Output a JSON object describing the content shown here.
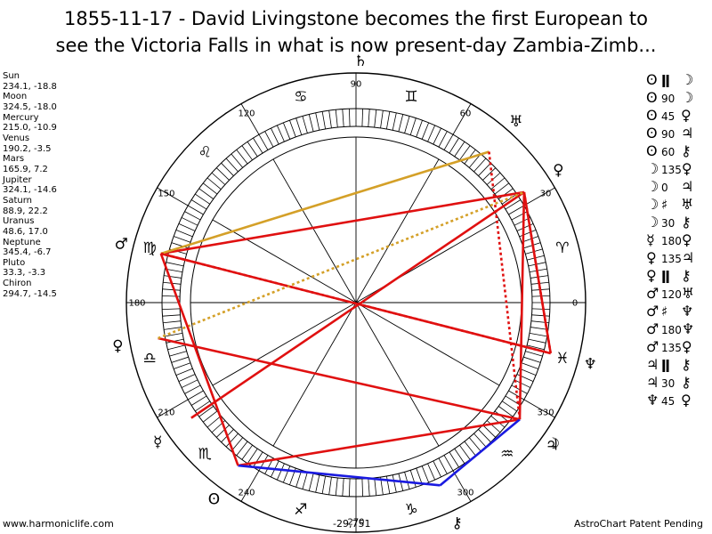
{
  "title_line1": "1855-11-17 - David Livingstone becomes the first European to",
  "title_line2": "see the Victoria Falls in what is now present-day Zambia-Zimb...",
  "positions": [
    {
      "name": "Sun",
      "value": "234.1, -18.8"
    },
    {
      "name": "Moon",
      "value": "324.5, -18.0"
    },
    {
      "name": "Mercury",
      "value": "215.0, -10.9"
    },
    {
      "name": "Venus",
      "value": "190.2, -3.5"
    },
    {
      "name": "Mars",
      "value": "165.9, 7.2"
    },
    {
      "name": "Jupiter",
      "value": "324.1, -14.6"
    },
    {
      "name": "Saturn",
      "value": "88.9, 22.2"
    },
    {
      "name": "Uranus",
      "value": "48.6, 17.0"
    },
    {
      "name": "Neptune",
      "value": "345.4, -6.7"
    },
    {
      "name": "Pluto",
      "value": "33.3, -3.3"
    },
    {
      "name": "Chiron",
      "value": "294.7, -14.5"
    }
  ],
  "aspects": [
    {
      "g1": "ʘ",
      "asp": "ǁ",
      "g2": "☽",
      "sym": true
    },
    {
      "g1": "ʘ",
      "asp": "90",
      "g2": "☽"
    },
    {
      "g1": "ʘ",
      "asp": "45",
      "g2": "♀"
    },
    {
      "g1": "ʘ",
      "asp": "90",
      "g2": "♃"
    },
    {
      "g1": "ʘ",
      "asp": "60",
      "g2": "⚷"
    },
    {
      "g1": "☽",
      "asp": "135",
      "g2": "♀"
    },
    {
      "g1": "☽",
      "asp": "0",
      "g2": "♃"
    },
    {
      "g1": "☽",
      "asp": "♯",
      "g2": "♅",
      "sym": true
    },
    {
      "g1": "☽",
      "asp": "30",
      "g2": "⚷"
    },
    {
      "g1": "☿",
      "asp": "180",
      "g2": "♀"
    },
    {
      "g1": "♀",
      "asp": "135",
      "g2": "♃"
    },
    {
      "g1": "♀",
      "asp": "ǁ",
      "g2": "⚷",
      "sym": true
    },
    {
      "g1": "♂",
      "asp": "120",
      "g2": "♅"
    },
    {
      "g1": "♂",
      "asp": "♯",
      "g2": "♆",
      "sym": true
    },
    {
      "g1": "♂",
      "asp": "180",
      "g2": "♆"
    },
    {
      "g1": "♂",
      "asp": "135",
      "g2": "♀"
    },
    {
      "g1": "♃",
      "asp": "ǁ",
      "g2": "⚷",
      "sym": true
    },
    {
      "g1": "♃",
      "asp": "30",
      "g2": "⚷"
    },
    {
      "g1": "♆",
      "asp": "45",
      "g2": "♀"
    }
  ],
  "degree_labels": [
    "0",
    "30",
    "60",
    "90",
    "120",
    "150",
    "180",
    "210",
    "240",
    "270",
    "300",
    "330"
  ],
  "wheel": {
    "center_label": "-29,751",
    "planets": [
      {
        "glyph": "ʘ",
        "lon": 234.1,
        "color": "#000000"
      },
      {
        "glyph": "☽",
        "lon": 324.5,
        "color": "#000000"
      },
      {
        "glyph": "☿",
        "lon": 215.0,
        "color": "#000000"
      },
      {
        "glyph": "♀",
        "lon": 190.2,
        "color": "#000000"
      },
      {
        "glyph": "♂",
        "lon": 165.9,
        "color": "#000000"
      },
      {
        "glyph": "♃",
        "lon": 324.1,
        "color": "#000000"
      },
      {
        "glyph": "♄",
        "lon": 88.9,
        "color": "#000000"
      },
      {
        "glyph": "♅",
        "lon": 48.6,
        "color": "#000000"
      },
      {
        "glyph": "♆",
        "lon": 345.4,
        "color": "#000000"
      },
      {
        "glyph": "♀",
        "lon": 33.3,
        "color": "#000000"
      },
      {
        "glyph": "⚷",
        "lon": 294.7,
        "color": "#000000"
      }
    ],
    "zodiac_signs": [
      {
        "glyph": "♈",
        "lon": 15
      },
      {
        "glyph": "♊",
        "lon": 75
      },
      {
        "glyph": "♋",
        "lon": 105
      },
      {
        "glyph": "♌",
        "lon": 135
      },
      {
        "glyph": "♍",
        "lon": 165
      },
      {
        "glyph": "♎",
        "lon": 195
      },
      {
        "glyph": "♏",
        "lon": 225
      },
      {
        "glyph": "♐",
        "lon": 255
      },
      {
        "glyph": "♑",
        "lon": 285
      },
      {
        "glyph": "♒",
        "lon": 315
      },
      {
        "glyph": "♓",
        "lon": 345
      }
    ],
    "aspect_lines": [
      {
        "from": 165.9,
        "to": 345.4,
        "color": "#e01010",
        "dashed": false
      },
      {
        "from": 165.9,
        "to": 33.3,
        "color": "#e01010",
        "dashed": false
      },
      {
        "from": 165.9,
        "to": 48.6,
        "color": "#d4a028",
        "dashed": false
      },
      {
        "from": 33.3,
        "to": 324.5,
        "color": "#e01010",
        "dashed": false
      },
      {
        "from": 33.3,
        "to": 345.4,
        "color": "#e01010",
        "dashed": false
      },
      {
        "from": 33.3,
        "to": 215.0,
        "color": "#e01010",
        "dashed": false
      },
      {
        "from": 190.2,
        "to": 324.5,
        "color": "#e01010",
        "dashed": false
      },
      {
        "from": 190.2,
        "to": 33.3,
        "color": "#d4a028",
        "dashed": true
      },
      {
        "from": 234.1,
        "to": 324.5,
        "color": "#e01010",
        "dashed": false
      },
      {
        "from": 234.1,
        "to": 294.7,
        "color": "#1a1ae0",
        "dashed": false
      },
      {
        "from": 324.5,
        "to": 294.7,
        "color": "#1a1ae0",
        "dashed": false
      },
      {
        "from": 234.1,
        "to": 165.9,
        "color": "#e01010",
        "dashed": false
      },
      {
        "from": 48.6,
        "to": 324.5,
        "color": "#e01010",
        "dashed": true
      },
      {
        "from": 165.9,
        "to": 345.4,
        "color": "#e01010",
        "dashed": true
      },
      {
        "from": 33.3,
        "to": 345.4,
        "color": "#e01010",
        "dashed": true
      }
    ]
  },
  "footer": {
    "left": "www.harmoniclife.com",
    "right": "AstroChart Patent Pending"
  }
}
